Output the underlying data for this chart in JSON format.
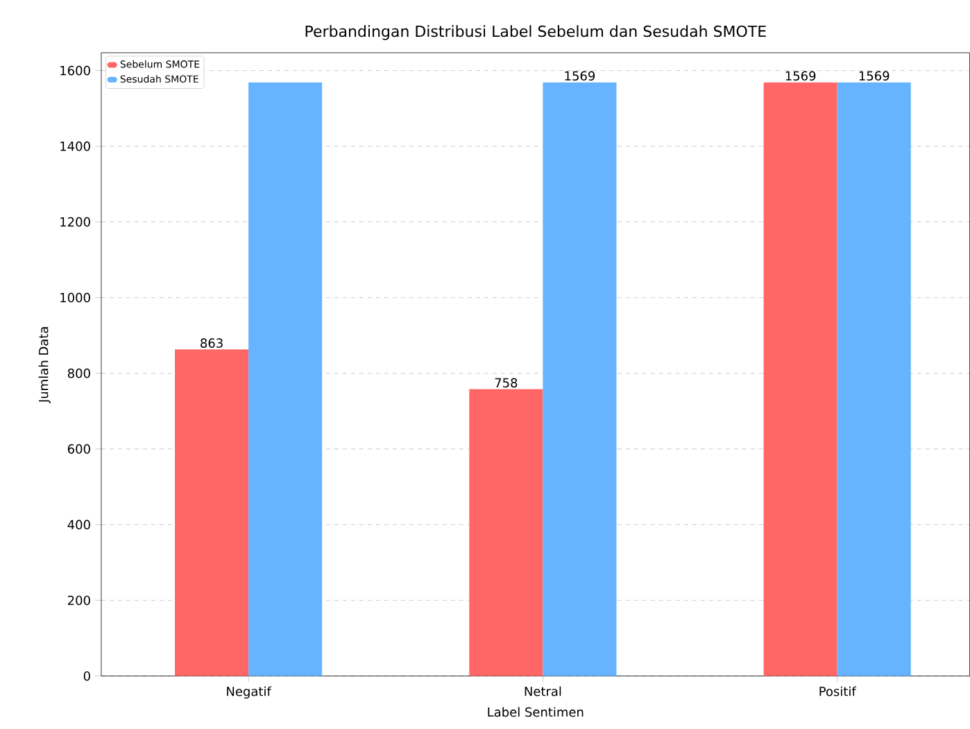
{
  "chart_data": {
    "type": "bar",
    "title": "Perbandingan Distribusi Label Sebelum dan Sesudah SMOTE",
    "xlabel": "Label Sentimen",
    "ylabel": "Jumlah Data",
    "categories": [
      "Negatif",
      "Netral",
      "Positif"
    ],
    "series": [
      {
        "name": "Sebelum SMOTE",
        "color": "#ff6666",
        "values": [
          863,
          758,
          1569
        ],
        "value_labels": [
          "863",
          "758",
          "1569"
        ]
      },
      {
        "name": "Sesudah SMOTE",
        "color": "#66b3ff",
        "values": [
          1569,
          1569,
          1569
        ],
        "value_labels": [
          null,
          "1569",
          "1569"
        ]
      }
    ],
    "ylim": [
      0,
      1647
    ],
    "yticks": [
      0,
      200,
      400,
      600,
      800,
      1000,
      1200,
      1400,
      1600
    ],
    "grid": "y",
    "legend": "top left"
  }
}
